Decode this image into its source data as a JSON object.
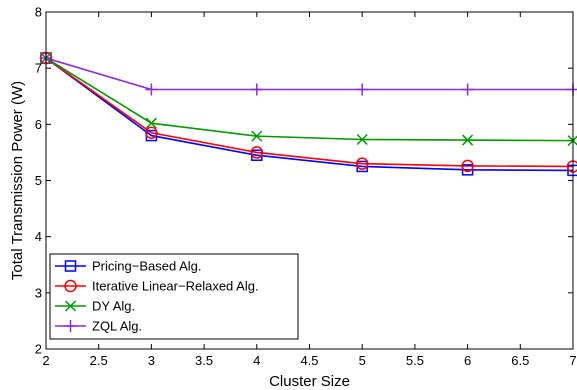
{
  "chart_data": {
    "type": "line",
    "xlabel": "Cluster Size",
    "ylabel": "Total Transmission Power (W)",
    "xlim": [
      2,
      7
    ],
    "ylim": [
      2,
      8
    ],
    "xticks": [
      "2",
      "2.5",
      "3",
      "3.5",
      "4",
      "4.5",
      "5",
      "5.5",
      "6",
      "6.5",
      "7"
    ],
    "yticks": [
      "2",
      "3",
      "4",
      "5",
      "6",
      "7",
      "8"
    ],
    "x": [
      2,
      3,
      4,
      5,
      6,
      7
    ],
    "series": [
      {
        "name": "Pricing−Based Alg.",
        "color": "#0000ff",
        "marker": "square",
        "values": [
          7.18,
          5.8,
          5.45,
          5.25,
          5.19,
          5.18
        ]
      },
      {
        "name": "Iterative Linear−Relaxed Alg.",
        "color": "#ff0000",
        "marker": "circle",
        "values": [
          7.18,
          5.85,
          5.5,
          5.3,
          5.26,
          5.25
        ]
      },
      {
        "name": "DY Alg.",
        "color": "#009900",
        "marker": "x",
        "values": [
          7.18,
          6.02,
          5.79,
          5.73,
          5.72,
          5.71
        ]
      },
      {
        "name": "ZQL Alg.",
        "color": "#8a2be2",
        "marker": "plus",
        "values": [
          7.18,
          6.62,
          6.62,
          6.62,
          6.62,
          6.62
        ]
      }
    ],
    "legend_position": "bottom-left",
    "grid": false
  }
}
